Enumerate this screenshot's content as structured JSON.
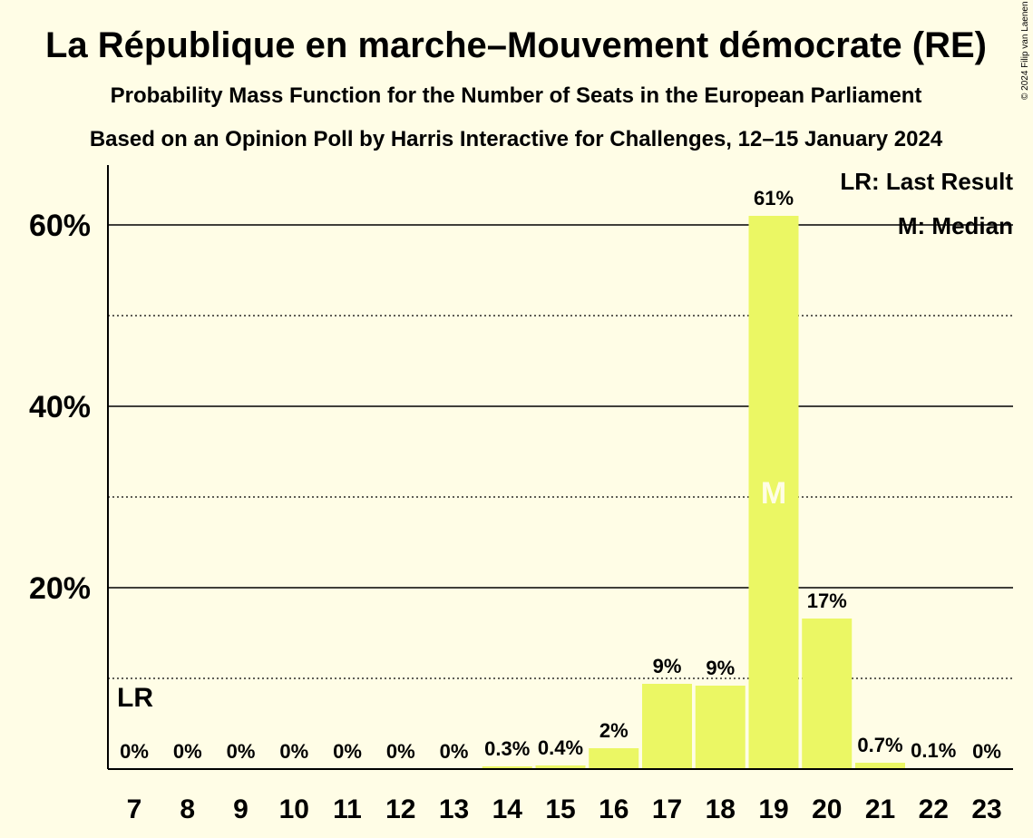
{
  "chart_data": {
    "type": "bar",
    "title": "La République en marche–Mouvement démocrate (RE)",
    "subtitle": "Probability Mass Function for the Number of Seats in the European Parliament",
    "subtitle2": "Based on an Opinion Poll by Harris Interactive for Challenges, 12–15 January 2024",
    "copyright": "© 2024 Filip van Laenen",
    "categories": [
      "7",
      "8",
      "9",
      "10",
      "11",
      "12",
      "13",
      "14",
      "15",
      "16",
      "17",
      "18",
      "19",
      "20",
      "21",
      "22",
      "23"
    ],
    "values": [
      0,
      0,
      0,
      0,
      0,
      0,
      0,
      0.3,
      0.4,
      2.3,
      9.4,
      9.2,
      61,
      16.6,
      0.7,
      0.1,
      0
    ],
    "labels": [
      "0%",
      "0%",
      "0%",
      "0%",
      "0%",
      "0%",
      "0%",
      "0.3%",
      "0.4%",
      "2%",
      "9%",
      "9%",
      "61%",
      "17%",
      "0.7%",
      "0.1%",
      "0%"
    ],
    "ylim": [
      0,
      66
    ],
    "yticks": [
      {
        "value": 20,
        "label": "20%"
      },
      {
        "value": 40,
        "label": "40%"
      },
      {
        "value": 60,
        "label": "60%"
      }
    ],
    "dotted_gridlines": [
      10,
      30,
      50
    ],
    "last_result_category": "7",
    "last_result_marker": "LR",
    "median_category": "19",
    "median_marker": "M",
    "legend": [
      "LR: Last Result",
      "M: Median"
    ],
    "colors": {
      "bar": "#EBF764",
      "background": "#FFFDE6",
      "median_text": "#FFFDE6"
    }
  }
}
